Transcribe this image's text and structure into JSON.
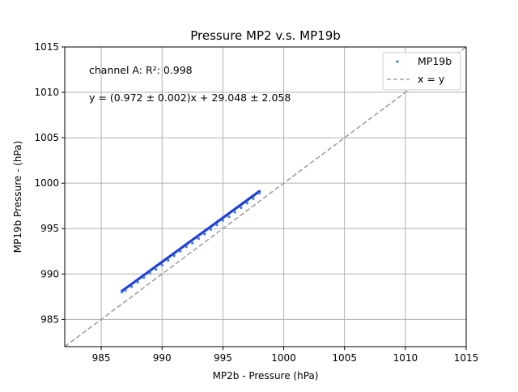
{
  "chart_data": {
    "type": "scatter",
    "title": "Pressure MP2 v.s. MP19b",
    "xlabel": "MP2b - Pressure (hPa)",
    "ylabel": "MP19b Pressure - (hPa)",
    "xlim": [
      982,
      1015
    ],
    "ylim": [
      982,
      1015
    ],
    "xticks": [
      985,
      990,
      995,
      1000,
      1005,
      1010,
      1015
    ],
    "yticks": [
      985,
      990,
      995,
      1000,
      1005,
      1010,
      1015
    ],
    "grid": true,
    "legend_position": "top-right",
    "annotations": [
      "channel A: R²: 0.998",
      "y = (0.972 ± 0.002)x + 29.048 ± 2.058"
    ],
    "series": [
      {
        "name": "MP19b",
        "kind": "scatter",
        "color": "#1f3fd6",
        "x_range": [
          986.7,
          998.0
        ],
        "fit": {
          "slope": 0.972,
          "intercept": 29.048
        },
        "points": [
          [
            986.7,
            988.0
          ],
          [
            987.0,
            988.2
          ],
          [
            987.5,
            988.6
          ],
          [
            988.0,
            989.1
          ],
          [
            988.5,
            989.6
          ],
          [
            989.0,
            990.1
          ],
          [
            989.5,
            990.5
          ],
          [
            990.0,
            991.0
          ],
          [
            990.5,
            991.5
          ],
          [
            991.0,
            992.0
          ],
          [
            991.5,
            992.5
          ],
          [
            992.0,
            993.0
          ],
          [
            992.5,
            993.4
          ],
          [
            993.0,
            993.9
          ],
          [
            993.5,
            994.4
          ],
          [
            994.0,
            994.9
          ],
          [
            994.5,
            995.4
          ],
          [
            995.0,
            995.9
          ],
          [
            995.5,
            996.3
          ],
          [
            996.0,
            996.8
          ],
          [
            996.5,
            997.3
          ],
          [
            997.0,
            997.8
          ],
          [
            997.5,
            998.3
          ],
          [
            998.0,
            998.9
          ]
        ]
      },
      {
        "name": "x = y",
        "kind": "line",
        "color": "#a0a0a0",
        "dashed": true,
        "x": [
          982,
          1015
        ],
        "y": [
          982,
          1015
        ]
      }
    ]
  }
}
